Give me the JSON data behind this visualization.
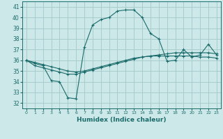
{
  "xlabel": "Humidex (Indice chaleur)",
  "bg_color": "#cde8e8",
  "grid_color": "#a8cccc",
  "line_color": "#1a6b6b",
  "xlim": [
    -0.5,
    23.5
  ],
  "ylim": [
    31.5,
    41.5
  ],
  "yticks": [
    32,
    33,
    34,
    35,
    36,
    37,
    38,
    39,
    40,
    41
  ],
  "xticks": [
    0,
    1,
    2,
    3,
    4,
    5,
    6,
    7,
    8,
    9,
    10,
    11,
    12,
    13,
    14,
    15,
    16,
    17,
    18,
    19,
    20,
    21,
    22,
    23
  ],
  "series": [
    [
      36.0,
      35.7,
      35.5,
      34.1,
      34.0,
      32.5,
      32.4,
      37.2,
      39.3,
      39.8,
      40.0,
      40.6,
      40.7,
      40.7,
      40.0,
      38.5,
      38.0,
      35.9,
      36.0,
      37.0,
      36.3,
      36.5,
      37.5,
      36.5
    ],
    [
      36.0,
      35.5,
      35.3,
      35.1,
      34.9,
      34.7,
      34.7,
      34.9,
      35.1,
      35.3,
      35.5,
      35.7,
      35.9,
      36.1,
      36.3,
      36.4,
      36.5,
      36.6,
      36.7,
      36.7,
      36.7,
      36.7,
      36.7,
      36.6
    ],
    [
      36.0,
      35.8,
      35.6,
      35.4,
      35.2,
      35.0,
      34.9,
      35.0,
      35.2,
      35.4,
      35.6,
      35.8,
      36.0,
      36.2,
      36.3,
      36.4,
      36.4,
      36.4,
      36.4,
      36.4,
      36.4,
      36.3,
      36.3,
      36.2
    ]
  ],
  "xlabel_fontsize": 6.5,
  "tick_fontsize": 5.5
}
